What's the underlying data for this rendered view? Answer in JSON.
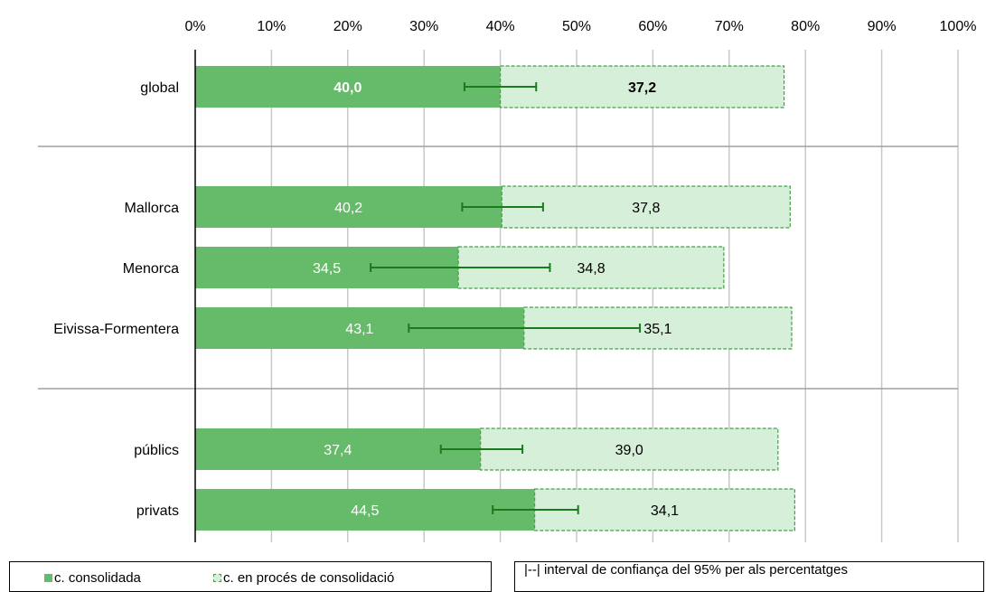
{
  "chart_data": {
    "type": "bar",
    "orientation": "horizontal",
    "stacked": true,
    "x_ticks": [
      "0%",
      "10%",
      "20%",
      "30%",
      "40%",
      "50%",
      "60%",
      "70%",
      "80%",
      "90%",
      "100%"
    ],
    "xlim": [
      0,
      100
    ],
    "grid": true,
    "categories": [
      "global",
      "Mallorca",
      "Menorca",
      "Eivissa-Formentera",
      "públics",
      "privats"
    ],
    "label_texts": {
      "consolidada": [
        "40,0",
        "40,2",
        "34,5",
        "43,1",
        "37,4",
        "44,5"
      ],
      "proces": [
        "37,2",
        "37,8",
        "34,8",
        "35,1",
        "39,0",
        "34,1"
      ]
    },
    "series": [
      {
        "name": "c. consolidada",
        "values": [
          40.0,
          40.2,
          34.5,
          43.1,
          37.4,
          44.5
        ],
        "color": "#66bb6a"
      },
      {
        "name": "c. en procés de consolidació",
        "values": [
          37.2,
          37.8,
          34.8,
          35.1,
          39.0,
          34.1
        ],
        "color": "#d6efd8"
      }
    ],
    "error_bars": [
      {
        "low": 35.3,
        "high": 44.7
      },
      {
        "low": 35.0,
        "high": 45.6
      },
      {
        "low": 23.0,
        "high": 46.5
      },
      {
        "low": 28.0,
        "high": 58.3
      },
      {
        "low": 32.2,
        "high": 42.9
      },
      {
        "low": 39.0,
        "high": 50.2
      }
    ],
    "bold_first": true,
    "legend": {
      "left": [
        "c. consolidada",
        "c. en procés de consolidació"
      ],
      "right": "|--| interval de confiança del 95% per als percentatges",
      "placement": "bottom"
    },
    "colors": {
      "solid": "#66bb6a",
      "light": "#d6efd8",
      "dash": "#43a047",
      "error": "#1b7a1b",
      "grid": "#c8c8c8",
      "separator": "#a0a0a0"
    }
  }
}
